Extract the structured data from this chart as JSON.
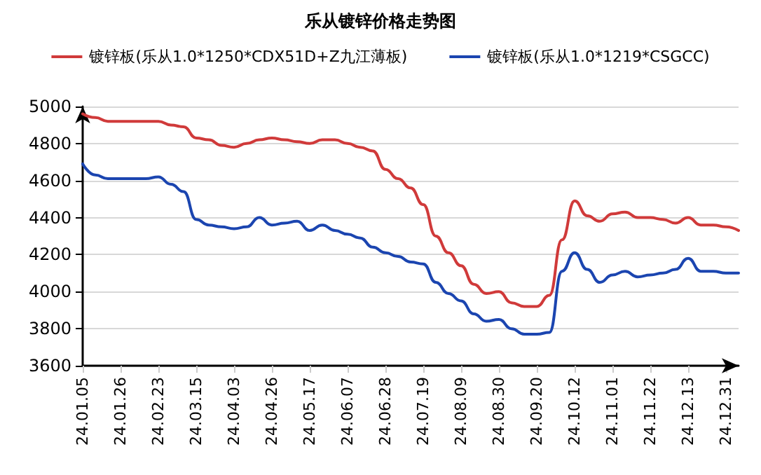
{
  "chart_data": {
    "type": "line",
    "title": "乐从镀锌价格走势图",
    "categories": [
      "24.01.05",
      null,
      null,
      "24.01.26",
      null,
      null,
      "24.02.23",
      null,
      null,
      "24.03.15",
      null,
      null,
      "24.04.03",
      null,
      null,
      "24.04.26",
      null,
      null,
      "24.05.17",
      null,
      null,
      "24.06.07",
      null,
      null,
      "24.06.28",
      null,
      null,
      "24.07.19",
      null,
      null,
      "24.08.09",
      null,
      null,
      "24.08.30",
      null,
      null,
      "24.09.20",
      null,
      null,
      "24.10.12",
      null,
      null,
      "24.11.01",
      null,
      null,
      "24.11.22",
      null,
      null,
      "24.12.13",
      null,
      null,
      "24.12.31",
      null
    ],
    "series": [
      {
        "name": "镀锌板(乐从1.0*1250*CDX51D+Z九江薄板)",
        "color": "#d03a3a",
        "values": [
          4960,
          4940,
          4920,
          4920,
          4920,
          4920,
          4920,
          4900,
          4890,
          4830,
          4820,
          4790,
          4780,
          4800,
          4820,
          4830,
          4820,
          4810,
          4800,
          4820,
          4820,
          4800,
          4780,
          4760,
          4660,
          4610,
          4560,
          4470,
          4300,
          4210,
          4140,
          4040,
          3990,
          4000,
          3940,
          3920,
          3920,
          3980,
          4280,
          4490,
          4410,
          4380,
          4420,
          4430,
          4400,
          4400,
          4390,
          4370,
          4400,
          4360,
          4360,
          4350,
          4330
        ]
      },
      {
        "name": "镀锌板(乐从1.0*1219*CSGCC)",
        "color": "#1b45b0",
        "values": [
          4690,
          4630,
          4610,
          4610,
          4610,
          4610,
          4620,
          4580,
          4540,
          4390,
          4360,
          4350,
          4340,
          4350,
          4400,
          4360,
          4370,
          4380,
          4330,
          4360,
          4330,
          4310,
          4290,
          4240,
          4210,
          4190,
          4160,
          4150,
          4050,
          3990,
          3950,
          3880,
          3840,
          3850,
          3800,
          3770,
          3770,
          3780,
          4110,
          4210,
          4120,
          4050,
          4090,
          4110,
          4080,
          4090,
          4100,
          4120,
          4180,
          4110,
          4110,
          4100,
          4100
        ]
      }
    ],
    "ylim": [
      3600,
      5000
    ],
    "yticks": [
      3600,
      3800,
      4000,
      4200,
      4400,
      4600,
      4800,
      5000
    ],
    "grid": "y",
    "legend": "top",
    "marker": "none",
    "line_style": "solid"
  }
}
